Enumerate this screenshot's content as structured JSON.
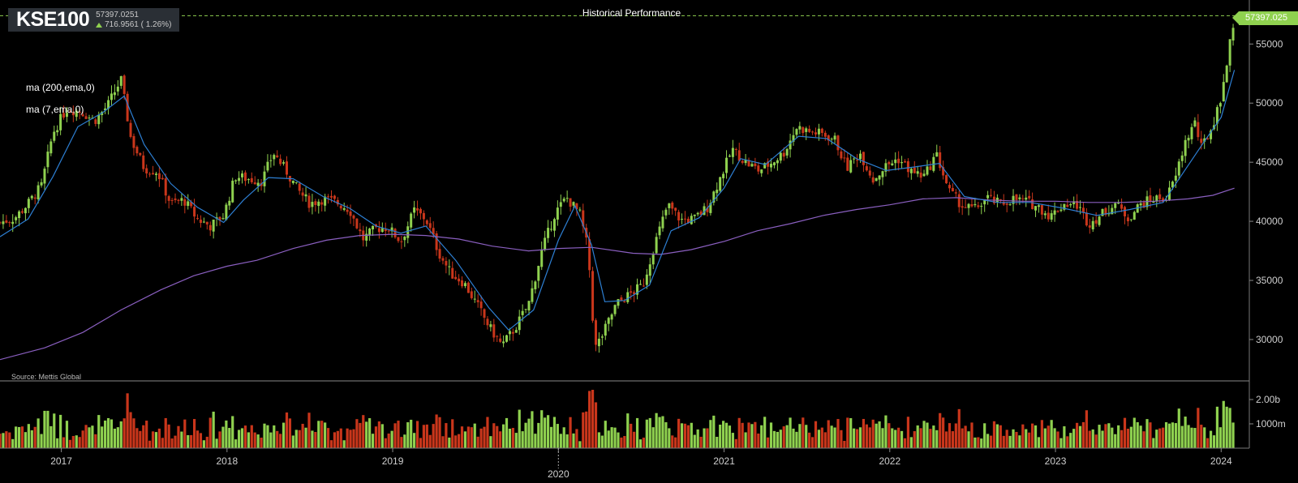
{
  "header": {
    "symbol": "KSE100",
    "last": "57397.0251",
    "change": "716.9561 ( 1.26%)",
    "title": "Historical Performance",
    "ma_labels": [
      "ma (200,ema,0)",
      "ma (7,ema,0)"
    ],
    "source": "Source: Mettis Global",
    "last_tag": "57397.025"
  },
  "colors": {
    "up": "#8fd14f",
    "down": "#c9361b",
    "ma200": "#8a5fc0",
    "ma7": "#2d7fd3",
    "grid": "#555",
    "axis": "#cfcfcf"
  },
  "chart_data": {
    "type": "candlestick",
    "price_axis": {
      "ticks": [
        30000,
        35000,
        40000,
        45000,
        50000,
        55000
      ],
      "range": [
        26500,
        57900
      ]
    },
    "volume_axis": {
      "ticks": [
        "1000m",
        "2.00b"
      ]
    },
    "x_ticks": [
      "2017",
      "2018",
      "2019",
      "2020",
      "2021",
      "2022",
      "2023",
      "2024"
    ],
    "x_range": [
      2016.63,
      2024.17
    ],
    "closes": [
      [
        2016.63,
        39900
      ],
      [
        2016.72,
        40300
      ],
      [
        2016.8,
        41500
      ],
      [
        2016.88,
        43000
      ],
      [
        2016.95,
        47500
      ],
      [
        2017.03,
        49500
      ],
      [
        2017.12,
        49300
      ],
      [
        2017.2,
        48500
      ],
      [
        2017.28,
        49800
      ],
      [
        2017.36,
        52000
      ],
      [
        2017.42,
        47000
      ],
      [
        2017.5,
        44500
      ],
      [
        2017.58,
        44200
      ],
      [
        2017.66,
        41500
      ],
      [
        2017.74,
        41800
      ],
      [
        2017.82,
        40200
      ],
      [
        2017.9,
        39600
      ],
      [
        2017.98,
        40500
      ],
      [
        2018.05,
        43800
      ],
      [
        2018.13,
        43600
      ],
      [
        2018.21,
        43400
      ],
      [
        2018.28,
        45800
      ],
      [
        2018.36,
        44200
      ],
      [
        2018.43,
        42600
      ],
      [
        2018.5,
        41500
      ],
      [
        2018.58,
        41900
      ],
      [
        2018.66,
        41600
      ],
      [
        2018.74,
        41000
      ],
      [
        2018.82,
        38500
      ],
      [
        2018.9,
        39400
      ],
      [
        2018.97,
        39500
      ],
      [
        2019.05,
        38300
      ],
      [
        2019.13,
        40900
      ],
      [
        2019.2,
        40200
      ],
      [
        2019.28,
        37300
      ],
      [
        2019.35,
        35600
      ],
      [
        2019.43,
        34800
      ],
      [
        2019.51,
        32900
      ],
      [
        2019.59,
        30900
      ],
      [
        2019.66,
        29500
      ],
      [
        2019.74,
        31000
      ],
      [
        2019.82,
        33000
      ],
      [
        2019.9,
        37500
      ],
      [
        2019.98,
        40700
      ],
      [
        2020.05,
        42000
      ],
      [
        2020.13,
        40600
      ],
      [
        2020.18,
        37500
      ],
      [
        2020.22,
        29200
      ],
      [
        2020.27,
        30500
      ],
      [
        2020.35,
        33000
      ],
      [
        2020.43,
        33800
      ],
      [
        2020.51,
        34600
      ],
      [
        2020.58,
        38000
      ],
      [
        2020.66,
        41400
      ],
      [
        2020.74,
        40100
      ],
      [
        2020.82,
        40200
      ],
      [
        2020.9,
        41200
      ],
      [
        2020.98,
        43800
      ],
      [
        2021.05,
        46100
      ],
      [
        2021.13,
        45000
      ],
      [
        2021.21,
        44300
      ],
      [
        2021.28,
        44900
      ],
      [
        2021.36,
        45800
      ],
      [
        2021.44,
        48000
      ],
      [
        2021.51,
        47600
      ],
      [
        2021.59,
        47400
      ],
      [
        2021.67,
        46900
      ],
      [
        2021.74,
        44500
      ],
      [
        2021.82,
        45800
      ],
      [
        2021.9,
        43500
      ],
      [
        2021.97,
        44600
      ],
      [
        2022.05,
        45300
      ],
      [
        2022.13,
        44200
      ],
      [
        2022.21,
        43800
      ],
      [
        2022.28,
        45700
      ],
      [
        2022.36,
        42500
      ],
      [
        2022.44,
        41300
      ],
      [
        2022.51,
        41000
      ],
      [
        2022.59,
        42000
      ],
      [
        2022.67,
        41400
      ],
      [
        2022.74,
        41900
      ],
      [
        2022.82,
        41700
      ],
      [
        2022.9,
        41200
      ],
      [
        2022.97,
        40400
      ],
      [
        2023.05,
        41500
      ],
      [
        2023.13,
        41400
      ],
      [
        2023.2,
        39800
      ],
      [
        2023.28,
        40600
      ],
      [
        2023.36,
        41500
      ],
      [
        2023.44,
        40300
      ],
      [
        2023.51,
        41400
      ],
      [
        2023.59,
        41900
      ],
      [
        2023.67,
        42000
      ],
      [
        2023.72,
        43500
      ],
      [
        2023.78,
        46600
      ],
      [
        2023.84,
        48400
      ],
      [
        2023.88,
        46200
      ],
      [
        2023.94,
        47800
      ],
      [
        2023.99,
        50000
      ],
      [
        2024.03,
        53000
      ],
      [
        2024.08,
        57397
      ]
    ],
    "ma200": [
      [
        2016.63,
        28300
      ],
      [
        2016.9,
        29300
      ],
      [
        2017.13,
        30600
      ],
      [
        2017.36,
        32500
      ],
      [
        2017.6,
        34200
      ],
      [
        2017.8,
        35400
      ],
      [
        2018.0,
        36200
      ],
      [
        2018.18,
        36700
      ],
      [
        2018.4,
        37700
      ],
      [
        2018.6,
        38400
      ],
      [
        2018.8,
        38800
      ],
      [
        2019.0,
        38900
      ],
      [
        2019.2,
        38800
      ],
      [
        2019.4,
        38500
      ],
      [
        2019.6,
        37900
      ],
      [
        2019.82,
        37500
      ],
      [
        2020.0,
        37700
      ],
      [
        2020.2,
        37800
      ],
      [
        2020.45,
        37300
      ],
      [
        2020.62,
        37200
      ],
      [
        2020.8,
        37600
      ],
      [
        2021.0,
        38300
      ],
      [
        2021.2,
        39200
      ],
      [
        2021.4,
        39800
      ],
      [
        2021.6,
        40500
      ],
      [
        2021.8,
        41000
      ],
      [
        2022.0,
        41400
      ],
      [
        2022.2,
        41900
      ],
      [
        2022.4,
        42000
      ],
      [
        2022.6,
        41800
      ],
      [
        2022.8,
        41700
      ],
      [
        2023.0,
        41700
      ],
      [
        2023.2,
        41600
      ],
      [
        2023.4,
        41600
      ],
      [
        2023.6,
        41700
      ],
      [
        2023.8,
        41900
      ],
      [
        2023.95,
        42200
      ],
      [
        2024.08,
        42800
      ]
    ],
    "ma7": [
      [
        2016.63,
        38700
      ],
      [
        2016.8,
        40200
      ],
      [
        2016.95,
        43800
      ],
      [
        2017.1,
        48000
      ],
      [
        2017.25,
        49200
      ],
      [
        2017.38,
        50600
      ],
      [
        2017.5,
        46500
      ],
      [
        2017.66,
        43200
      ],
      [
        2017.82,
        41200
      ],
      [
        2017.98,
        39900
      ],
      [
        2018.1,
        41800
      ],
      [
        2018.25,
        43700
      ],
      [
        2018.4,
        43600
      ],
      [
        2018.58,
        42100
      ],
      [
        2018.74,
        41100
      ],
      [
        2018.9,
        39600
      ],
      [
        2019.05,
        39000
      ],
      [
        2019.2,
        39600
      ],
      [
        2019.38,
        36700
      ],
      [
        2019.58,
        32700
      ],
      [
        2019.7,
        30800
      ],
      [
        2019.85,
        32500
      ],
      [
        2020.0,
        38400
      ],
      [
        2020.1,
        41300
      ],
      [
        2020.2,
        38000
      ],
      [
        2020.28,
        33200
      ],
      [
        2020.4,
        33300
      ],
      [
        2020.55,
        34600
      ],
      [
        2020.68,
        39200
      ],
      [
        2020.85,
        40300
      ],
      [
        2021.0,
        42800
      ],
      [
        2021.1,
        45300
      ],
      [
        2021.25,
        44800
      ],
      [
        2021.45,
        47200
      ],
      [
        2021.62,
        47000
      ],
      [
        2021.8,
        45300
      ],
      [
        2021.98,
        44300
      ],
      [
        2022.15,
        44600
      ],
      [
        2022.3,
        44900
      ],
      [
        2022.45,
        42100
      ],
      [
        2022.65,
        41600
      ],
      [
        2022.85,
        41600
      ],
      [
        2023.05,
        41100
      ],
      [
        2023.25,
        40500
      ],
      [
        2023.45,
        41000
      ],
      [
        2023.65,
        41600
      ],
      [
        2023.78,
        44300
      ],
      [
        2023.9,
        46800
      ],
      [
        2024.0,
        48800
      ],
      [
        2024.08,
        52800
      ]
    ]
  }
}
